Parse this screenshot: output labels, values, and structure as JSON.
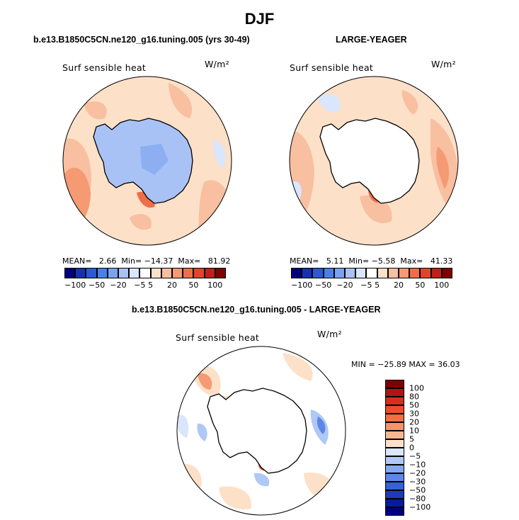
{
  "page": {
    "title": "DJF"
  },
  "panels": [
    {
      "title": "b.e13.B1850C5CN.ne120_g16.tuning.005 (yrs 30-49)",
      "field_label": "Surf sensible heat",
      "units": "W/m²",
      "stats": {
        "mean_label": "MEAN=",
        "mean": "2.66",
        "min_label": "Min=",
        "min": "−14.37",
        "max_label": "Max=",
        "max": "81.92"
      },
      "colorbar_ticks": [
        "−100",
        "−50",
        "−20",
        "−5",
        "5",
        "20",
        "50",
        "100"
      ]
    },
    {
      "title": "LARGE-YEAGER",
      "field_label": "Surf sensible heat",
      "units": "W/m²",
      "stats": {
        "mean_label": "MEAN=",
        "mean": "5.11",
        "min_label": "Min=",
        "min": "−5.58",
        "max_label": "Max=",
        "max": "41.33"
      },
      "colorbar_ticks": [
        "−100",
        "−50",
        "−20",
        "−5",
        "5",
        "20",
        "50",
        "100"
      ]
    },
    {
      "title": "b.e13.B1850C5CN.ne120_g16.tuning.005 - LARGE-YEAGER",
      "field_label": "Surf sensible heat",
      "units": "W/m²",
      "minmax": "MIN = −25.89  MAX =  36.03",
      "colorbar_ticks": [
        "100",
        "80",
        "50",
        "30",
        "20",
        "10",
        "5",
        "0",
        "−5",
        "−10",
        "−20",
        "−30",
        "−50",
        "−80",
        "−100"
      ]
    }
  ],
  "colors": {
    "seq_colorbar": [
      "#00007f",
      "#1432b0",
      "#2d5ad2",
      "#4a80e8",
      "#7ba2f0",
      "#a9c2f5",
      "#d9e6fb",
      "#ffffff",
      "#fde0c8",
      "#f8bfa0",
      "#f59a72",
      "#ee6e48",
      "#e0452b",
      "#c0201a",
      "#800000"
    ],
    "diff_colorbar": [
      "#800000",
      "#b0150f",
      "#d6301c",
      "#ea4f2c",
      "#f36d45",
      "#f79367",
      "#f9b793",
      "#fde0c8",
      "#d9e6fb",
      "#afc8f5",
      "#84a9f0",
      "#5c87e6",
      "#3563d6",
      "#1c3cbc",
      "#0a1a9a",
      "#00007f"
    ],
    "land": "#ffffff",
    "coast": "#000000"
  },
  "chart_data": [
    {
      "type": "heatmap",
      "projection": "south-polar-stereographic",
      "title": "b.e13.B1850C5CN.ne120_g16.tuning.005 (yrs 30-49)",
      "variable": "Surf sensible heat",
      "units": "W/m2",
      "mean": 2.66,
      "min": -14.37,
      "max": 81.92,
      "contour_levels": [
        -100,
        -80,
        -50,
        -30,
        -20,
        -10,
        -5,
        0,
        5,
        10,
        20,
        30,
        50,
        80,
        100
      ]
    },
    {
      "type": "heatmap",
      "projection": "south-polar-stereographic",
      "title": "LARGE-YEAGER",
      "variable": "Surf sensible heat",
      "units": "W/m2",
      "mean": 5.11,
      "min": -5.58,
      "max": 41.33,
      "contour_levels": [
        -100,
        -80,
        -50,
        -30,
        -20,
        -10,
        -5,
        0,
        5,
        10,
        20,
        30,
        50,
        80,
        100
      ]
    },
    {
      "type": "heatmap",
      "projection": "south-polar-stereographic",
      "title": "b.e13.B1850C5CN.ne120_g16.tuning.005 - LARGE-YEAGER",
      "variable": "Surf sensible heat",
      "units": "W/m2",
      "min": -25.89,
      "max": 36.03,
      "contour_levels": [
        -100,
        -80,
        -50,
        -30,
        -20,
        -10,
        -5,
        0,
        5,
        10,
        20,
        30,
        50,
        80,
        100
      ]
    }
  ]
}
